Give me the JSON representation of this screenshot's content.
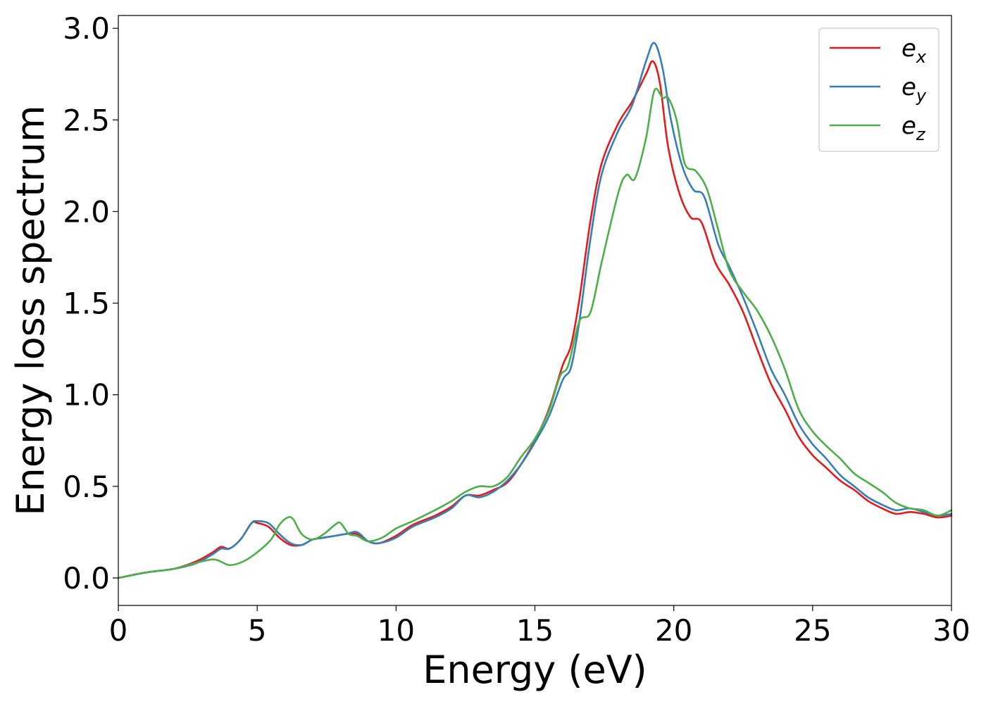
{
  "chart_data": {
    "type": "line",
    "title": "",
    "xlabel": "Energy (eV)",
    "ylabel": "Energy loss spectrum",
    "xlim": [
      0,
      30
    ],
    "ylim": [
      -0.15,
      3.07
    ],
    "grid": false,
    "legend_position": "top-right",
    "xticks": [
      0,
      5,
      10,
      15,
      20,
      25,
      30
    ],
    "xtick_labels": [
      "0",
      "5",
      "10",
      "15",
      "20",
      "25",
      "30"
    ],
    "yticks": [
      0.0,
      0.5,
      1.0,
      1.5,
      2.0,
      2.5,
      3.0
    ],
    "ytick_labels": [
      "0.0",
      "0.5",
      "1.0",
      "1.5",
      "2.0",
      "2.5",
      "3.0"
    ],
    "series": [
      {
        "name": "e_x",
        "label_base": "e",
        "label_sub": "x",
        "color": "#e41a1c",
        "x": [
          0,
          1,
          2,
          2.8,
          3.4,
          3.7,
          4.0,
          4.4,
          4.8,
          5.0,
          5.4,
          5.8,
          6.2,
          6.6,
          7.0,
          7.4,
          7.8,
          8.2,
          8.6,
          9.0,
          9.4,
          10.0,
          10.6,
          11.4,
          12.0,
          12.5,
          13.0,
          13.5,
          14.0,
          14.5,
          15.0,
          15.5,
          16.0,
          16.3,
          16.6,
          17.0,
          17.4,
          18.0,
          18.5,
          19.0,
          19.25,
          19.5,
          19.8,
          20.2,
          20.6,
          21.0,
          21.5,
          22.0,
          22.5,
          23.0,
          23.5,
          24.0,
          24.5,
          25.0,
          25.5,
          26.0,
          26.5,
          27.0,
          27.5,
          28.0,
          28.5,
          29.0,
          29.5,
          30.0
        ],
        "values": [
          0.0,
          0.03,
          0.05,
          0.09,
          0.14,
          0.17,
          0.16,
          0.21,
          0.3,
          0.3,
          0.28,
          0.22,
          0.18,
          0.18,
          0.21,
          0.22,
          0.23,
          0.24,
          0.24,
          0.2,
          0.19,
          0.23,
          0.29,
          0.34,
          0.39,
          0.45,
          0.45,
          0.48,
          0.52,
          0.62,
          0.75,
          0.92,
          1.16,
          1.27,
          1.52,
          1.95,
          2.26,
          2.48,
          2.6,
          2.75,
          2.82,
          2.7,
          2.35,
          2.1,
          1.97,
          1.94,
          1.72,
          1.6,
          1.45,
          1.25,
          1.06,
          0.92,
          0.77,
          0.67,
          0.6,
          0.53,
          0.48,
          0.42,
          0.38,
          0.35,
          0.36,
          0.35,
          0.33,
          0.34
        ]
      },
      {
        "name": "e_y",
        "label_base": "e",
        "label_sub": "y",
        "color": "#377eb8",
        "x": [
          0,
          1,
          2,
          2.8,
          3.4,
          3.7,
          4.0,
          4.4,
          4.8,
          5.0,
          5.4,
          5.8,
          6.2,
          6.6,
          7.0,
          7.4,
          7.8,
          8.2,
          8.6,
          9.0,
          9.4,
          10.0,
          10.6,
          11.4,
          12.0,
          12.5,
          13.0,
          13.5,
          14.0,
          14.5,
          15.0,
          15.5,
          16.0,
          16.3,
          16.6,
          17.0,
          17.4,
          18.0,
          18.5,
          19.0,
          19.3,
          19.6,
          19.9,
          20.3,
          20.7,
          21.1,
          21.6,
          22.0,
          22.5,
          23.0,
          23.5,
          24.0,
          24.5,
          25.0,
          25.5,
          26.0,
          26.5,
          27.0,
          27.5,
          28.0,
          28.5,
          29.0,
          29.5,
          30.0
        ],
        "values": [
          0.0,
          0.03,
          0.05,
          0.08,
          0.13,
          0.16,
          0.16,
          0.21,
          0.3,
          0.31,
          0.3,
          0.24,
          0.19,
          0.18,
          0.21,
          0.22,
          0.23,
          0.24,
          0.25,
          0.2,
          0.19,
          0.22,
          0.28,
          0.33,
          0.38,
          0.45,
          0.44,
          0.47,
          0.53,
          0.62,
          0.74,
          0.88,
          1.08,
          1.15,
          1.4,
          1.85,
          2.2,
          2.44,
          2.58,
          2.82,
          2.92,
          2.78,
          2.5,
          2.25,
          2.12,
          2.08,
          1.82,
          1.7,
          1.53,
          1.34,
          1.14,
          1.0,
          0.84,
          0.73,
          0.65,
          0.56,
          0.5,
          0.44,
          0.4,
          0.37,
          0.38,
          0.36,
          0.34,
          0.35
        ]
      },
      {
        "name": "e_z",
        "label_base": "e",
        "label_sub": "z",
        "color": "#4daf4a",
        "x": [
          0,
          1,
          2,
          3,
          3.5,
          4.0,
          4.5,
          5.0,
          5.5,
          5.8,
          6.1,
          6.3,
          6.6,
          7.0,
          7.4,
          7.8,
          8.0,
          8.3,
          8.6,
          9.0,
          9.5,
          10.0,
          10.6,
          11.4,
          12.0,
          12.5,
          13.0,
          13.5,
          14.0,
          14.5,
          15.0,
          15.5,
          15.9,
          16.2,
          16.6,
          17.0,
          17.4,
          18.0,
          18.3,
          18.6,
          19.0,
          19.3,
          19.6,
          19.8,
          20.1,
          20.4,
          20.8,
          21.2,
          21.6,
          22.0,
          22.5,
          23.0,
          23.5,
          24.0,
          24.5,
          25.0,
          25.5,
          26.0,
          26.5,
          27.0,
          27.5,
          28.0,
          28.5,
          29.0,
          29.5,
          30.0
        ],
        "values": [
          0.0,
          0.03,
          0.05,
          0.09,
          0.1,
          0.07,
          0.09,
          0.14,
          0.21,
          0.29,
          0.33,
          0.32,
          0.24,
          0.21,
          0.24,
          0.29,
          0.3,
          0.24,
          0.23,
          0.2,
          0.22,
          0.27,
          0.31,
          0.37,
          0.42,
          0.47,
          0.5,
          0.5,
          0.55,
          0.66,
          0.76,
          0.91,
          1.1,
          1.16,
          1.4,
          1.45,
          1.72,
          2.1,
          2.2,
          2.18,
          2.4,
          2.66,
          2.62,
          2.62,
          2.5,
          2.26,
          2.22,
          2.12,
          1.9,
          1.68,
          1.56,
          1.46,
          1.32,
          1.14,
          0.92,
          0.8,
          0.72,
          0.65,
          0.57,
          0.52,
          0.47,
          0.41,
          0.38,
          0.37,
          0.34,
          0.37
        ]
      }
    ]
  }
}
